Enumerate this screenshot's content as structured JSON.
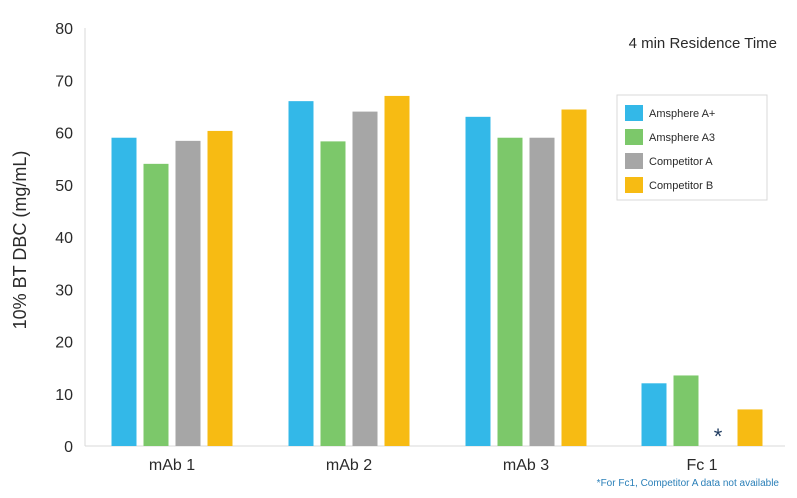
{
  "chart_data": {
    "type": "bar",
    "title": "",
    "subtitle": "4 min Residence Time",
    "xlabel": "",
    "ylabel": "10% BT DBC (mg/mL)",
    "ylim": [
      0,
      80
    ],
    "yticks": [
      0,
      10,
      20,
      30,
      40,
      50,
      60,
      70,
      80
    ],
    "grid": false,
    "legend_position": "right",
    "categories": [
      "mAb 1",
      "mAb 2",
      "mAb 3",
      "Fc 1"
    ],
    "series": [
      {
        "name": "Amsphere A+",
        "color": "#33b8e8",
        "values": [
          59,
          66,
          63,
          12
        ]
      },
      {
        "name": "Amsphere A3",
        "color": "#7cc86a",
        "values": [
          54,
          58.3,
          59,
          13.5
        ]
      },
      {
        "name": "Competitor A",
        "color": "#a6a6a6",
        "values": [
          58.4,
          64,
          59,
          null
        ]
      },
      {
        "name": "Competitor B",
        "color": "#f7bb13",
        "values": [
          60.3,
          67,
          64.4,
          7
        ]
      }
    ],
    "missing_marker": "*",
    "footnote": "*For Fc1, Competitor A data not available"
  }
}
